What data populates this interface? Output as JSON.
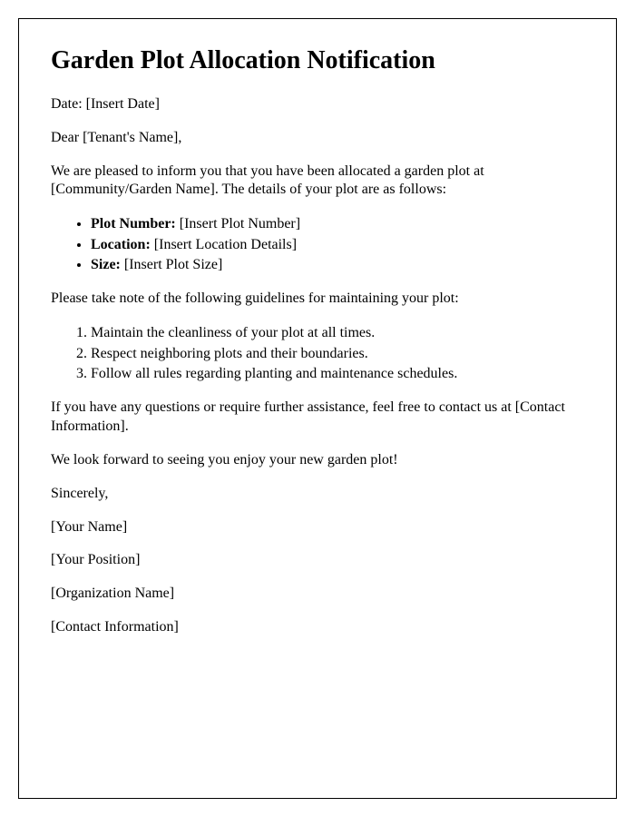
{
  "title": "Garden Plot Allocation Notification",
  "date_line": "Date: [Insert Date]",
  "salutation": "Dear [Tenant's Name],",
  "intro": "We are pleased to inform you that you have been allocated a garden plot at [Community/Garden Name]. The details of your plot are as follows:",
  "plot_details": {
    "plot_number_label": "Plot Number:",
    "plot_number_value": " [Insert Plot Number]",
    "location_label": "Location:",
    "location_value": " [Insert Location Details]",
    "size_label": "Size:",
    "size_value": " [Insert Plot Size]"
  },
  "guidelines_intro": "Please take note of the following guidelines for maintaining your plot:",
  "guidelines": {
    "item1": "Maintain the cleanliness of your plot at all times.",
    "item2": "Respect neighboring plots and their boundaries.",
    "item3": "Follow all rules regarding planting and maintenance schedules."
  },
  "contact_line": "If you have any questions or require further assistance, feel free to contact us at [Contact Information].",
  "closing_line": "We look forward to seeing you enjoy your new garden plot!",
  "sign_off": "Sincerely,",
  "signature": {
    "name": "[Your Name]",
    "position": "[Your Position]",
    "organization": "[Organization Name]",
    "contact": "[Contact Information]"
  },
  "styling": {
    "font_family": "Times New Roman",
    "title_fontsize": 28,
    "body_fontsize": 16,
    "border_color": "#000000",
    "background_color": "#ffffff",
    "text_color": "#000000"
  }
}
